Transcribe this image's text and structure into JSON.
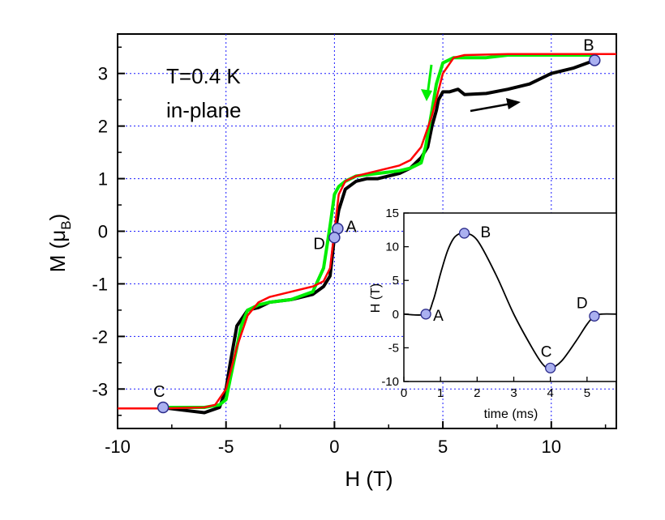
{
  "chart_data": [
    {
      "type": "line",
      "xlabel": "H (T)",
      "ylabel": "M (μB)",
      "ylabel_main": "M (μ",
      "ylabel_sub": "B",
      "ylabel_close": ")",
      "xlim": [
        -10,
        13
      ],
      "ylim": [
        -3.75,
        3.75
      ],
      "xticks": [
        -10,
        -5,
        0,
        5,
        10
      ],
      "yticks": [
        -3,
        -2,
        -1,
        0,
        1,
        2,
        3
      ],
      "grid": true,
      "annotations": [
        "T=0.4 K",
        "in-plane"
      ],
      "series": [
        {
          "color": "#000000",
          "x": [
            -8,
            -7,
            -6,
            -5.3,
            -5.0,
            -4.8,
            -4.5,
            -4.0,
            -3.5,
            -3.0,
            -2.0,
            -1.0,
            -0.5,
            -0.2,
            0,
            0.2,
            0.5,
            1.0,
            1.5,
            2.0,
            2.5,
            3.0,
            3.5,
            4.0,
            4.3,
            4.5,
            4.7,
            4.8,
            5.0,
            5.3,
            5.7,
            6.0,
            7.0,
            8.0,
            9.0,
            10.0,
            11.0,
            12.0
          ],
          "y": [
            -3.35,
            -3.4,
            -3.45,
            -3.35,
            -3.0,
            -2.5,
            -1.8,
            -1.5,
            -1.45,
            -1.35,
            -1.3,
            -1.2,
            -1.05,
            -0.85,
            -0.1,
            0.4,
            0.8,
            0.95,
            1.0,
            1.0,
            1.05,
            1.1,
            1.2,
            1.4,
            1.6,
            2.0,
            2.3,
            2.5,
            2.65,
            2.65,
            2.7,
            2.6,
            2.62,
            2.7,
            2.8,
            3.0,
            3.1,
            3.25
          ]
        },
        {
          "color": "#00ee00",
          "x": [
            12.0,
            11.0,
            10.0,
            9.0,
            8.0,
            7.0,
            6.0,
            5.5,
            5.0,
            4.7,
            4.5,
            4.2,
            4.0,
            3.5,
            3.0,
            2.0,
            1.0,
            0.5,
            0.2,
            0,
            -0.2,
            -0.5,
            -1.0,
            -2.0,
            -3.0,
            -3.5,
            -4.0,
            -4.3,
            -4.5,
            -4.8,
            -5.0,
            -5.3,
            -6.0,
            -7.0,
            -8.0
          ],
          "y": [
            3.35,
            3.35,
            3.35,
            3.35,
            3.35,
            3.3,
            3.3,
            3.3,
            3.2,
            2.8,
            2.3,
            1.6,
            1.3,
            1.2,
            1.15,
            1.1,
            1.05,
            0.95,
            0.85,
            0.7,
            0.1,
            -0.7,
            -1.15,
            -1.3,
            -1.35,
            -1.4,
            -1.5,
            -1.8,
            -2.2,
            -2.8,
            -3.2,
            -3.3,
            -3.35,
            -3.35,
            -3.35
          ]
        },
        {
          "color": "#ff0000",
          "x": [
            -10,
            -8,
            -6,
            -5.5,
            -5.0,
            -4.5,
            -4.0,
            -3.5,
            -3.0,
            -2.0,
            -1.0,
            -0.5,
            -0.2,
            0,
            0.2,
            0.5,
            1.0,
            2.0,
            3.0,
            3.5,
            4.0,
            4.5,
            5.0,
            5.5,
            6.0,
            8.0,
            10.0,
            13.0
          ],
          "y": [
            -3.37,
            -3.37,
            -3.35,
            -3.3,
            -3.0,
            -2.2,
            -1.6,
            -1.35,
            -1.25,
            -1.15,
            -1.05,
            -0.95,
            -0.7,
            0,
            0.7,
            0.95,
            1.05,
            1.15,
            1.25,
            1.35,
            1.6,
            2.2,
            3.0,
            3.3,
            3.35,
            3.37,
            3.37,
            3.37
          ]
        }
      ],
      "points": [
        {
          "label": "A",
          "x": 0.15,
          "y": 0.05
        },
        {
          "label": "B",
          "x": 12.0,
          "y": 3.25
        },
        {
          "label": "C",
          "x": -7.9,
          "y": -3.35
        },
        {
          "label": "D",
          "x": 0.0,
          "y": -0.12
        }
      ]
    },
    {
      "type": "line",
      "xlabel": "time (ms)",
      "ylabel": "H (T)",
      "xlim": [
        0,
        5.8
      ],
      "ylim": [
        -10,
        15
      ],
      "xticks": [
        0,
        1,
        2,
        3,
        4,
        5
      ],
      "yticks": [
        -10,
        -5,
        0,
        5,
        10,
        15
      ],
      "series": [
        {
          "color": "#000000",
          "x": [
            0,
            0.6,
            0.8,
            1.0,
            1.2,
            1.4,
            1.65,
            2.0,
            2.5,
            3.0,
            3.5,
            3.8,
            4.0,
            4.3,
            4.7,
            5.0,
            5.2,
            5.4,
            5.8
          ],
          "y": [
            0,
            0,
            2,
            6,
            9.5,
            11.5,
            12,
            11,
            6,
            0,
            -5,
            -7.5,
            -8,
            -7,
            -4,
            -1.5,
            -0.3,
            0,
            0
          ]
        }
      ],
      "points": [
        {
          "label": "A",
          "x": 0.6,
          "y": 0
        },
        {
          "label": "B",
          "x": 1.65,
          "y": 12
        },
        {
          "label": "C",
          "x": 4.0,
          "y": -8
        },
        {
          "label": "D",
          "x": 5.2,
          "y": -0.3
        }
      ]
    }
  ]
}
